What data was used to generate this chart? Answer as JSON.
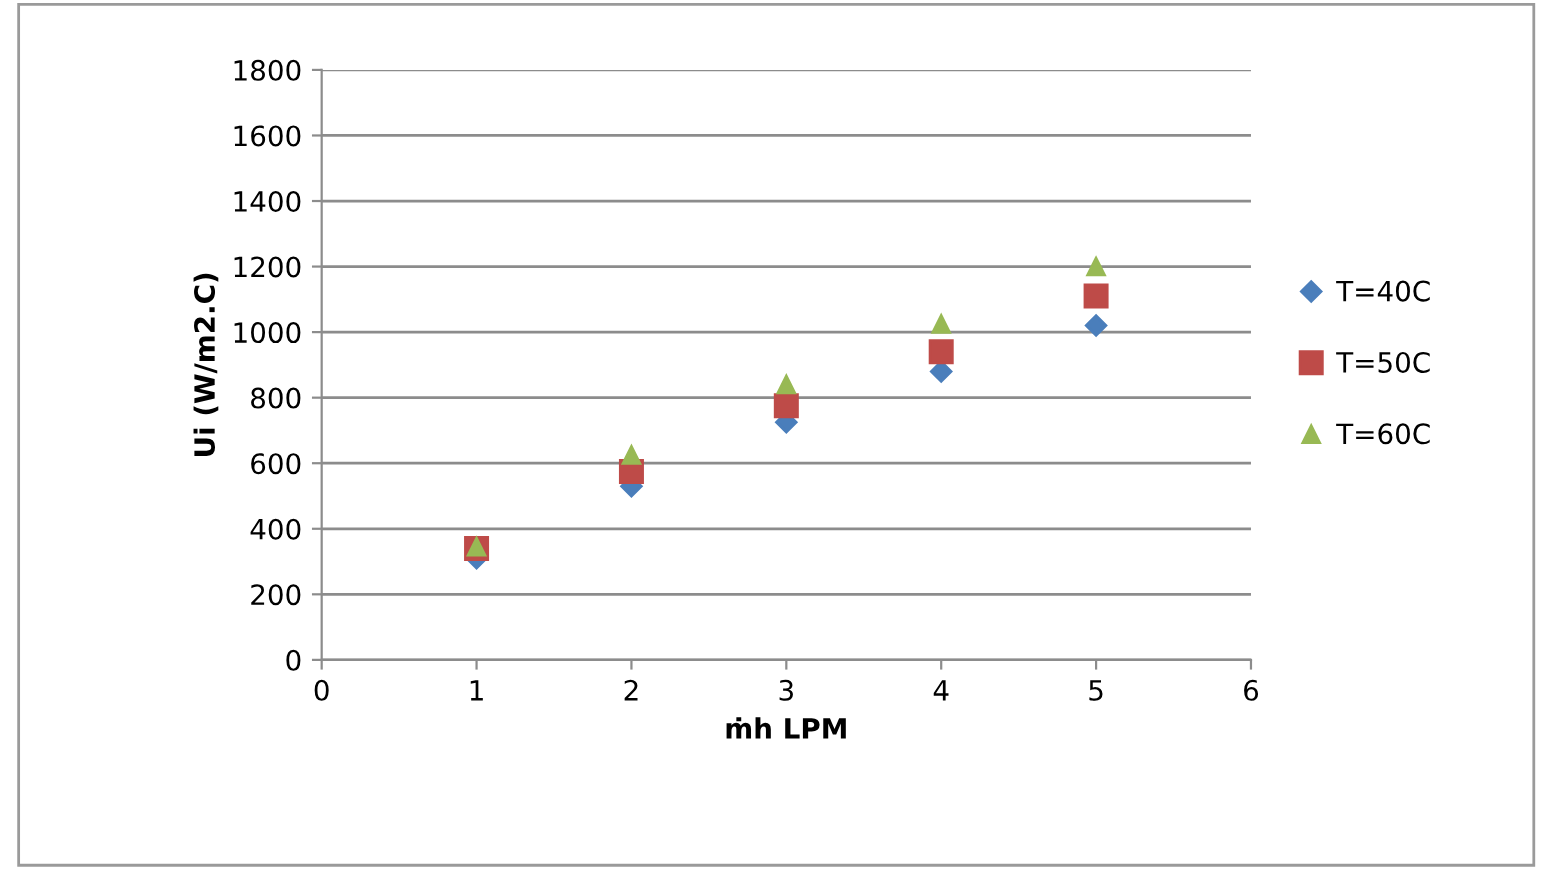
{
  "chart_data": {
    "type": "scatter",
    "xlabel": "ṁh LPM",
    "ylabel": "Ui (W/m2.C)",
    "x": [
      1,
      2,
      3,
      4,
      5
    ],
    "series": [
      {
        "name": "T=40C",
        "color": "#4a7ebb",
        "marker": "diamond",
        "values": [
          310,
          530,
          725,
          880,
          1020
        ]
      },
      {
        "name": "T=50C",
        "color": "#be4b48",
        "marker": "square",
        "values": [
          340,
          575,
          775,
          940,
          1110
        ]
      },
      {
        "name": "T=60C",
        "color": "#98b954",
        "marker": "triangle",
        "values": [
          345,
          625,
          840,
          1025,
          1200
        ]
      }
    ],
    "xlim": [
      0,
      6
    ],
    "xticks": [
      0,
      1,
      2,
      3,
      4,
      5,
      6
    ],
    "ylim": [
      0,
      1800
    ],
    "yticks": [
      0,
      200,
      400,
      600,
      800,
      1000,
      1200,
      1400,
      1600,
      1800
    ],
    "grid": "y",
    "legend": "right"
  }
}
